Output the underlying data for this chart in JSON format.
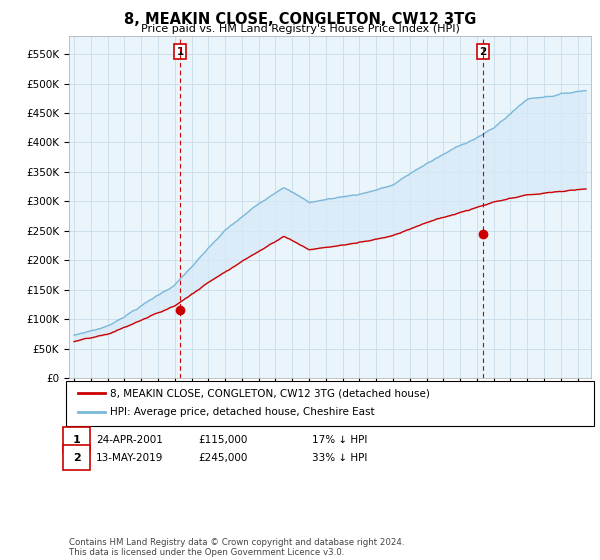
{
  "title": "8, MEAKIN CLOSE, CONGLETON, CW12 3TG",
  "subtitle": "Price paid vs. HM Land Registry's House Price Index (HPI)",
  "ylabel_ticks": [
    "£0",
    "£50K",
    "£100K",
    "£150K",
    "£200K",
    "£250K",
    "£300K",
    "£350K",
    "£400K",
    "£450K",
    "£500K",
    "£550K"
  ],
  "ytick_values": [
    0,
    50000,
    100000,
    150000,
    200000,
    250000,
    300000,
    350000,
    400000,
    450000,
    500000,
    550000
  ],
  "ylim": [
    0,
    580000
  ],
  "xlim_start": 1994.7,
  "xlim_end": 2025.8,
  "hpi_color": "#7ab8d9",
  "hpi_fill_color": "#d6eaf8",
  "price_color": "#cc0000",
  "vline_color": "#cc0000",
  "marker1_x": 2001.31,
  "marker1_y": 115000,
  "marker2_x": 2019.37,
  "marker2_y": 245000,
  "legend_line1": "8, MEAKIN CLOSE, CONGLETON, CW12 3TG (detached house)",
  "legend_line2": "HPI: Average price, detached house, Cheshire East",
  "annotation1_num": "1",
  "annotation1_date": "24-APR-2001",
  "annotation1_price": "£115,000",
  "annotation1_hpi": "17% ↓ HPI",
  "annotation2_num": "2",
  "annotation2_date": "13-MAY-2019",
  "annotation2_price": "£245,000",
  "annotation2_hpi": "33% ↓ HPI",
  "footer": "Contains HM Land Registry data © Crown copyright and database right 2024.\nThis data is licensed under the Open Government Licence v3.0.",
  "background_color": "#ffffff",
  "plot_bg_color": "#eaf4fb",
  "grid_color": "#c8dce8"
}
